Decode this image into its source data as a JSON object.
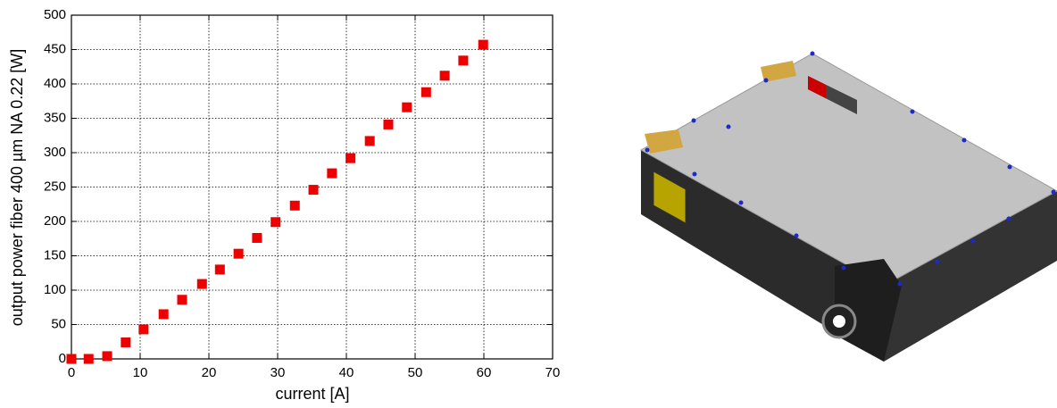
{
  "chart_data": {
    "type": "scatter",
    "xlabel": "current [A]",
    "ylabel": "output power fiber 400 µm NA 0.22 [W]",
    "x": [
      0,
      2.5,
      5.2,
      7.9,
      10.5,
      13.4,
      16.1,
      19,
      21.6,
      24.3,
      27,
      29.7,
      32.5,
      35.2,
      37.9,
      40.6,
      43.4,
      46.1,
      48.8,
      51.6,
      54.3,
      57,
      59.9
    ],
    "values": [
      0,
      0,
      4,
      24,
      43,
      65,
      86,
      109,
      130,
      153,
      176,
      199,
      223,
      246,
      270,
      292,
      317,
      341,
      366,
      388,
      412,
      434,
      457
    ],
    "color": "#ee0000",
    "xlim": [
      0,
      70
    ],
    "xticks": [
      0,
      10,
      20,
      30,
      40,
      50,
      60,
      70
    ],
    "ylim": [
      0,
      500
    ],
    "yticks": [
      0,
      50,
      100,
      150,
      200,
      250,
      300,
      350,
      400,
      450,
      500
    ],
    "grid": true
  }
}
